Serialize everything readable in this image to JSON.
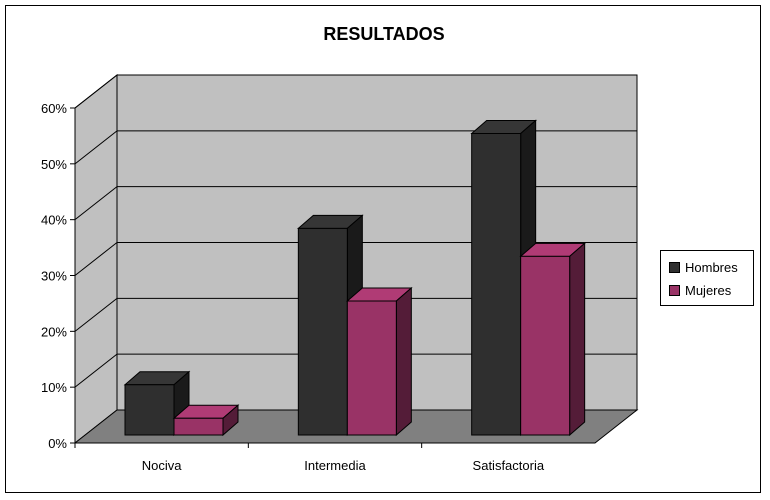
{
  "chart_data": {
    "type": "bar",
    "title": "RESULTADOS",
    "categories": [
      "Nociva",
      "Intermedia",
      "Satisfactoria"
    ],
    "series": [
      {
        "name": "Hombres",
        "values": [
          9,
          37,
          54
        ],
        "color": "#2f2f2f"
      },
      {
        "name": "Mujeres",
        "values": [
          3,
          24,
          32
        ],
        "color": "#993366"
      }
    ],
    "ylim": [
      0,
      60
    ],
    "yticks": [
      "0%",
      "10%",
      "20%",
      "30%",
      "40%",
      "50%",
      "60%"
    ],
    "grid": true,
    "legend": "right",
    "wall_color": "#c0c0c0",
    "floor_color": "#808080"
  }
}
